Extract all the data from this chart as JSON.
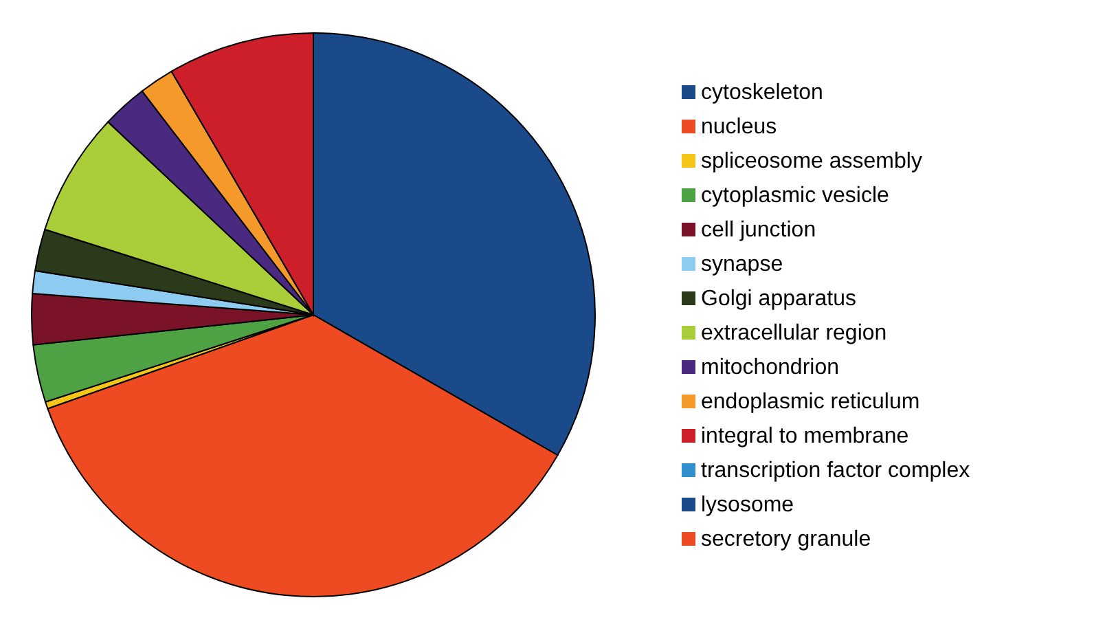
{
  "chart_data": {
    "type": "pie",
    "categories": [
      "cytoskeleton",
      "nucleus",
      "spliceosome assembly",
      "cytoplasmic vesicle",
      "cell junction",
      "synapse",
      "Golgi apparatus",
      "extracellular region",
      "mitochondrion",
      "endoplasmic reticulum",
      "integral to membrane",
      "transcription factor complex",
      "lysosome",
      "secretory granule"
    ],
    "values": [
      33.3,
      36.3,
      0.4,
      3.3,
      2.9,
      1.3,
      2.4,
      7.1,
      2.6,
      2.0,
      8.4,
      0,
      0,
      0
    ],
    "colors": [
      "#1a4a8a",
      "#ee4b22",
      "#f5c518",
      "#4ea244",
      "#7a1228",
      "#8ecbf0",
      "#2a3a1a",
      "#aacd3a",
      "#4a2a80",
      "#f59a2a",
      "#cc1f2a",
      "#2f8fcf",
      "#1a4a8a",
      "#ee4b22"
    ],
    "legend": "right"
  }
}
